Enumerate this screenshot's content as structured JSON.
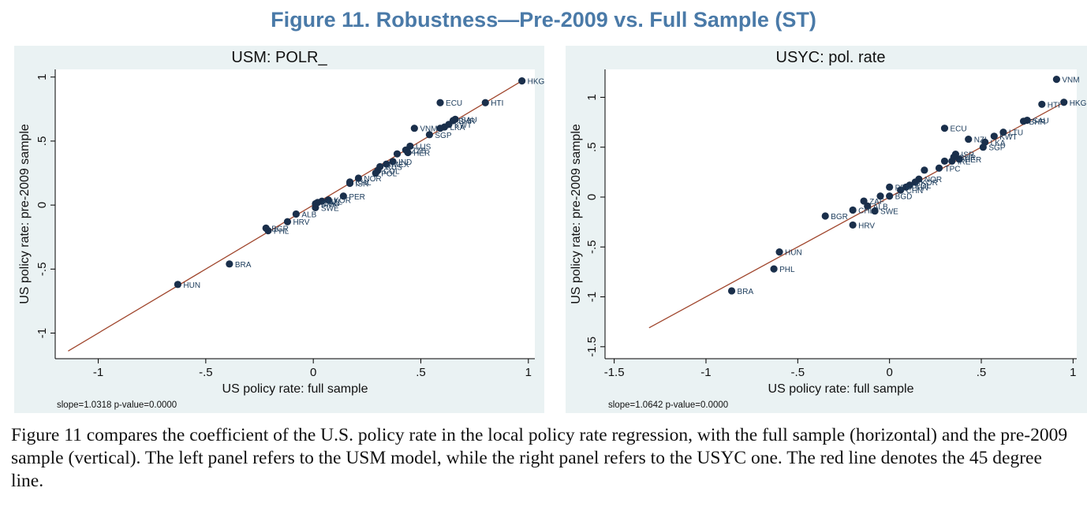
{
  "figure_title": "Figure 11. Robustness—Pre-2009 vs. Full Sample (ST)",
  "caption": "Figure 11 compares the coefficient of the U.S. policy rate in the local policy rate regression, with the full sample (horizontal) and the pre-2009 sample (vertical). The left panel refers to the USM model, while the right panel refers to the USYC one. The red line denotes the 45 degree line.",
  "colors": {
    "marker": "#1a2f4b",
    "fit_line": "#a0462d",
    "plot_bg": "#ffffff",
    "panel_bg": "#eaf2f3",
    "label_text": "#1a3a5a"
  },
  "chart_data": [
    {
      "type": "scatter",
      "title": "USM: POLR_",
      "xlabel": "US policy rate: full sample",
      "ylabel": "US policy rate: pre-2009 sample",
      "note": "slope=1.0318 p-value=0.0000",
      "xlim": [
        -1.2,
        1.03
      ],
      "ylim": [
        -1.2,
        1.06
      ],
      "xticks": [
        -1,
        -0.5,
        0,
        0.5,
        1
      ],
      "xtick_labels": [
        "-1",
        "-.5",
        "0",
        ".5",
        "1"
      ],
      "yticks": [
        -1,
        -0.5,
        0,
        0.5,
        1
      ],
      "ytick_labels": [
        "-1",
        "-.5",
        "0",
        ".5",
        "1"
      ],
      "fit_line": {
        "x": [
          -1.14,
          0.97
        ],
        "y": [
          -1.14,
          0.97
        ]
      },
      "points": [
        {
          "x": 0.97,
          "y": 0.97,
          "label": "HKG"
        },
        {
          "x": 0.59,
          "y": 0.8,
          "label": "ECU"
        },
        {
          "x": 0.8,
          "y": 0.8,
          "label": "HTI"
        },
        {
          "x": 0.66,
          "y": 0.67,
          "label": "SAU"
        },
        {
          "x": 0.65,
          "y": 0.66,
          "label": "BHR"
        },
        {
          "x": 0.63,
          "y": 0.63,
          "label": "KWT"
        },
        {
          "x": 0.61,
          "y": 0.61,
          "label": "LKA"
        },
        {
          "x": 0.47,
          "y": 0.6,
          "label": "VNM"
        },
        {
          "x": 0.59,
          "y": 0.6,
          "label": ""
        },
        {
          "x": 0.54,
          "y": 0.55,
          "label": "SGP"
        },
        {
          "x": 0.45,
          "y": 0.46,
          "label": "LUS"
        },
        {
          "x": 0.43,
          "y": 0.43,
          "label": "ZZB"
        },
        {
          "x": 0.44,
          "y": 0.41,
          "label": "HER"
        },
        {
          "x": 0.39,
          "y": 0.4,
          "label": ""
        },
        {
          "x": 0.37,
          "y": 0.34,
          "label": "IND"
        },
        {
          "x": 0.34,
          "y": 0.32,
          "label": "MEX"
        },
        {
          "x": 0.31,
          "y": 0.3,
          "label": "RUS"
        },
        {
          "x": 0.3,
          "y": 0.27,
          "label": "COL"
        },
        {
          "x": 0.29,
          "y": 0.25,
          "label": "POL"
        },
        {
          "x": 0.21,
          "y": 0.21,
          "label": "NOR"
        },
        {
          "x": 0.17,
          "y": 0.18,
          "label": "CHL"
        },
        {
          "x": 0.17,
          "y": 0.17,
          "label": "ISR"
        },
        {
          "x": 0.14,
          "y": 0.07,
          "label": "PER"
        },
        {
          "x": 0.07,
          "y": 0.04,
          "label": "KOR"
        },
        {
          "x": 0.04,
          "y": 0.03,
          "label": "NZL"
        },
        {
          "x": 0.02,
          "y": 0.02,
          "label": "CAN"
        },
        {
          "x": 0.01,
          "y": 0.01,
          "label": "DNK"
        },
        {
          "x": 0.01,
          "y": -0.02,
          "label": "SWE"
        },
        {
          "x": -0.08,
          "y": -0.07,
          "label": "ALB"
        },
        {
          "x": -0.12,
          "y": -0.13,
          "label": "HRV"
        },
        {
          "x": -0.22,
          "y": -0.18,
          "label": "BGR"
        },
        {
          "x": -0.21,
          "y": -0.2,
          "label": "PHL"
        },
        {
          "x": -0.39,
          "y": -0.46,
          "label": "BRA"
        },
        {
          "x": -0.63,
          "y": -0.62,
          "label": "HUN"
        }
      ]
    },
    {
      "type": "scatter",
      "title": "USYC: pol. rate",
      "xlabel": "US policy rate: full sample",
      "ylabel": "US policy rate: pre-2009 sample",
      "note": "slope=1.0642 p-value=0.0000",
      "xlim": [
        -1.55,
        1.02
      ],
      "ylim": [
        -1.62,
        1.28
      ],
      "xticks": [
        -1.5,
        -1,
        -0.5,
        0,
        0.5,
        1
      ],
      "xtick_labels": [
        "-1.5",
        "-1",
        "-.5",
        "0",
        ".5",
        "1"
      ],
      "yticks": [
        -1.5,
        -1,
        -0.5,
        0,
        0.5,
        1
      ],
      "ytick_labels": [
        "-1.5",
        "-1",
        "-.5",
        "0",
        ".5",
        "1"
      ],
      "fit_line": {
        "x": [
          -1.31,
          0.95
        ],
        "y": [
          -1.31,
          0.95
        ]
      },
      "points": [
        {
          "x": 0.91,
          "y": 1.18,
          "label": "VNM"
        },
        {
          "x": 0.95,
          "y": 0.95,
          "label": "HKG"
        },
        {
          "x": 0.83,
          "y": 0.93,
          "label": "HTI"
        },
        {
          "x": 0.75,
          "y": 0.77,
          "label": "SAU"
        },
        {
          "x": 0.73,
          "y": 0.76,
          "label": "BHR"
        },
        {
          "x": 0.3,
          "y": 0.69,
          "label": "ECU"
        },
        {
          "x": 0.62,
          "y": 0.65,
          "label": "LTU"
        },
        {
          "x": 0.57,
          "y": 0.61,
          "label": "KWT"
        },
        {
          "x": 0.43,
          "y": 0.58,
          "label": "NZL"
        },
        {
          "x": 0.52,
          "y": 0.55,
          "label": "LKA"
        },
        {
          "x": 0.51,
          "y": 0.5,
          "label": "SGP"
        },
        {
          "x": 0.36,
          "y": 0.43,
          "label": "ISR"
        },
        {
          "x": 0.35,
          "y": 0.4,
          "label": "BHR"
        },
        {
          "x": 0.38,
          "y": 0.38,
          "label": "HER"
        },
        {
          "x": 0.34,
          "y": 0.36,
          "label": "IRE"
        },
        {
          "x": 0.3,
          "y": 0.36,
          "label": ""
        },
        {
          "x": 0.27,
          "y": 0.29,
          "label": "TPC"
        },
        {
          "x": 0.19,
          "y": 0.27,
          "label": ""
        },
        {
          "x": 0.16,
          "y": 0.18,
          "label": "NOR"
        },
        {
          "x": 0.14,
          "y": 0.15,
          "label": "KOR"
        },
        {
          "x": 0.11,
          "y": 0.12,
          "label": "POL"
        },
        {
          "x": 0.09,
          "y": 0.1,
          "label": "PHN"
        },
        {
          "x": 0.06,
          "y": 0.07,
          "label": "CHN"
        },
        {
          "x": 0.0,
          "y": 0.1,
          "label": "PER"
        },
        {
          "x": 0.0,
          "y": 0.01,
          "label": "BGD"
        },
        {
          "x": -0.05,
          "y": 0.01,
          "label": ""
        },
        {
          "x": -0.14,
          "y": -0.04,
          "label": "ZAF"
        },
        {
          "x": -0.12,
          "y": -0.09,
          "label": "ALB"
        },
        {
          "x": -0.2,
          "y": -0.13,
          "label": "CHL"
        },
        {
          "x": -0.08,
          "y": -0.14,
          "label": "SWE"
        },
        {
          "x": -0.35,
          "y": -0.19,
          "label": "BGR"
        },
        {
          "x": -0.2,
          "y": -0.28,
          "label": "HRV"
        },
        {
          "x": -0.6,
          "y": -0.55,
          "label": "HUN"
        },
        {
          "x": -0.63,
          "y": -0.72,
          "label": "PHL"
        },
        {
          "x": -0.86,
          "y": -0.94,
          "label": "BRA"
        }
      ]
    }
  ]
}
